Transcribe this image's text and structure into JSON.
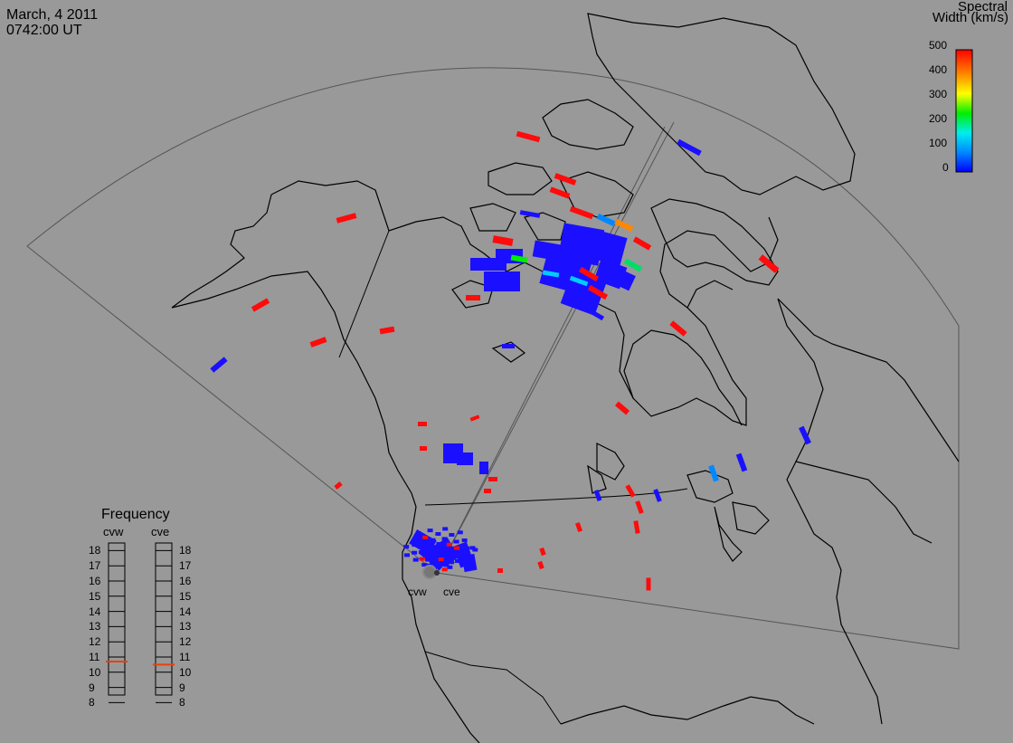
{
  "header": {
    "date": "March, 4 2011",
    "time": "0742:00 UT"
  },
  "colorbar": {
    "title": "Spectral",
    "subtitle": "Width (km/s)",
    "ticks": [
      "500",
      "400",
      "300",
      "200",
      "100",
      "0"
    ],
    "range": [
      0,
      500
    ],
    "gradient": [
      "#0000ff",
      "#0088ff",
      "#00eeee",
      "#00ee00",
      "#ffff00",
      "#ff8800",
      "#ff0000"
    ]
  },
  "radars": [
    {
      "code": "cvw",
      "frequency_mhz": 10.7
    },
    {
      "code": "cve",
      "frequency_mhz": 10.5
    }
  ],
  "frequency_panel": {
    "title": "Frequency",
    "ticks": [
      "18",
      "17",
      "16",
      "15",
      "14",
      "13",
      "12",
      "11",
      "10",
      "9",
      "8"
    ],
    "range": [
      8,
      18
    ],
    "marker_color": "#e8400a"
  },
  "colors": {
    "background": "#999999",
    "coastline": "#000000",
    "fov_outline": "#444444",
    "low_width": "#1a10ff",
    "high_width": "#ff0b0b"
  }
}
